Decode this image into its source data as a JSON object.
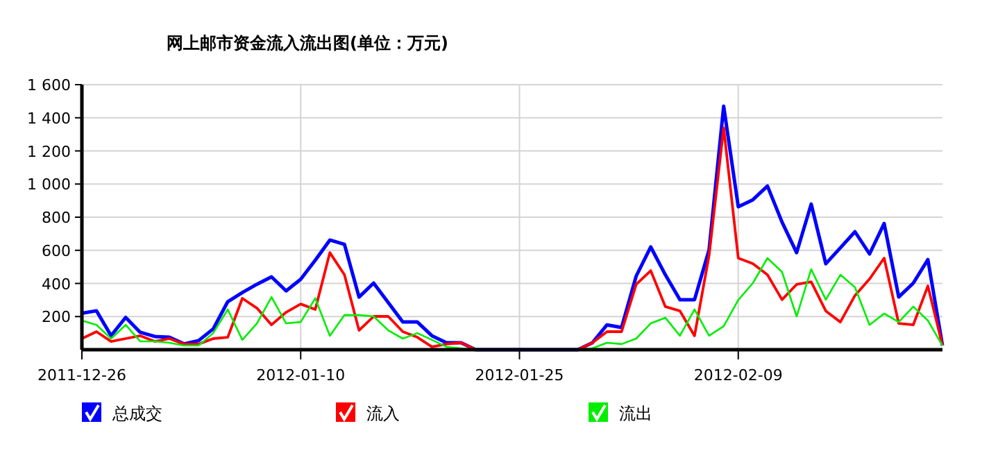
{
  "chart_data": {
    "type": "line",
    "title": "网上邮市资金流入流出图(单位：万元)",
    "x": [
      "2011-12-26",
      "2011-12-27",
      "2011-12-28",
      "2011-12-29",
      "2011-12-30",
      "2011-12-31",
      "2012-01-01",
      "2012-01-02",
      "2012-01-03",
      "2012-01-04",
      "2012-01-05",
      "2012-01-06",
      "2012-01-07",
      "2012-01-08",
      "2012-01-09",
      "2012-01-10",
      "2012-01-11",
      "2012-01-12",
      "2012-01-13",
      "2012-01-14",
      "2012-01-15",
      "2012-01-16",
      "2012-01-17",
      "2012-01-18",
      "2012-01-19",
      "2012-01-20",
      "2012-01-21",
      "2012-01-22",
      "2012-01-23",
      "2012-01-24",
      "2012-01-25",
      "2012-01-26",
      "2012-01-27",
      "2012-01-28",
      "2012-01-29",
      "2012-01-30",
      "2012-01-31",
      "2012-02-01",
      "2012-02-02",
      "2012-02-03",
      "2012-02-04",
      "2012-02-05",
      "2012-02-06",
      "2012-02-07",
      "2012-02-08",
      "2012-02-09",
      "2012-02-10",
      "2012-02-11",
      "2012-02-12",
      "2012-02-13",
      "2012-02-14",
      "2012-02-15",
      "2012-02-16",
      "2012-02-17",
      "2012-02-18",
      "2012-02-19",
      "2012-02-20",
      "2012-02-21",
      "2012-02-22",
      "2012-02-23"
    ],
    "series": [
      {
        "name": "总成交",
        "color": "#0000ff",
        "values": [
          220,
          235,
          85,
          195,
          105,
          80,
          75,
          35,
          55,
          125,
          290,
          345,
          395,
          440,
          355,
          425,
          540,
          662,
          636,
          318,
          402,
          285,
          167,
          167,
          84,
          42,
          42,
          0,
          0,
          0,
          0,
          0,
          0,
          0,
          0,
          42,
          150,
          134,
          444,
          620,
          452,
          302,
          302,
          603,
          1470,
          863,
          905,
          988,
          770,
          586,
          879,
          519,
          615,
          712,
          578,
          762,
          318,
          402,
          544,
          25
        ]
      },
      {
        "name": "流入",
        "color": "#ff0000",
        "values": [
          67,
          109,
          50,
          67,
          84,
          50,
          67,
          34,
          34,
          67,
          75,
          310,
          251,
          150,
          226,
          276,
          243,
          586,
          452,
          117,
          201,
          201,
          109,
          75,
          17,
          34,
          42,
          0,
          0,
          0,
          0,
          0,
          0,
          0,
          0,
          42,
          109,
          109,
          394,
          477,
          260,
          234,
          84,
          570,
          1340,
          553,
          519,
          452,
          302,
          394,
          410,
          234,
          167,
          327,
          427,
          553,
          159,
          150,
          385,
          25
        ]
      },
      {
        "name": "流出",
        "color": "#00ee00",
        "values": [
          176,
          150,
          67,
          150,
          50,
          50,
          42,
          25,
          25,
          100,
          243,
          59,
          159,
          318,
          159,
          167,
          310,
          84,
          209,
          209,
          201,
          117,
          67,
          100,
          59,
          17,
          8,
          0,
          0,
          0,
          0,
          0,
          0,
          0,
          0,
          8,
          42,
          34,
          67,
          159,
          193,
          84,
          243,
          84,
          142,
          300,
          402,
          553,
          469,
          201,
          486,
          302,
          452,
          377,
          150,
          218,
          167,
          260,
          176,
          25
        ]
      }
    ],
    "xlim": [
      "2011-12-26",
      "2012-02-23"
    ],
    "xticks": [
      "2011-12-26",
      "2012-01-10",
      "2012-01-25",
      "2012-02-09"
    ],
    "ylim": [
      0,
      1600
    ],
    "yticks": [
      {
        "value": 200,
        "label": "200"
      },
      {
        "value": 400,
        "label": "400"
      },
      {
        "value": 600,
        "label": "600"
      },
      {
        "value": 800,
        "label": "800"
      },
      {
        "value": 1000,
        "label": "1 000"
      },
      {
        "value": 1200,
        "label": "1 200"
      },
      {
        "value": 1400,
        "label": "1 400"
      },
      {
        "value": 1600,
        "label": "1 600"
      }
    ],
    "grid": true,
    "legend": "bottom",
    "marker": "none",
    "line_style": "solid"
  }
}
